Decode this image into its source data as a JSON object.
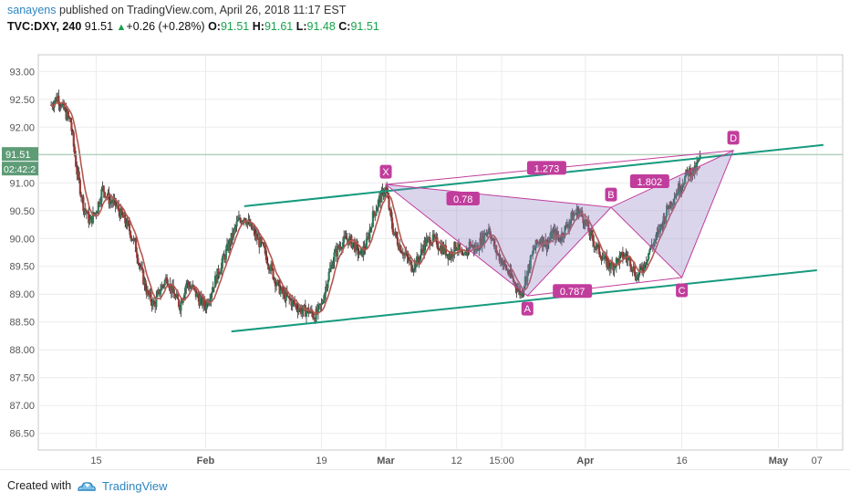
{
  "header": {
    "author": "sanayens",
    "published_text": "published on TradingView.com, April 26, 2018 11:17 EST",
    "symbol": "TVC:DXY, 240",
    "last_price": "91.51",
    "arrow": "▲",
    "change": "+0.26 (+0.28%)",
    "o_label": "O:",
    "o_value": "91.51",
    "h_label": "H:",
    "h_value": "91.61",
    "l_label": "L:",
    "l_value": "91.48",
    "c_label": "C:",
    "c_value": "91.51"
  },
  "footer": {
    "created_with": "Created with",
    "brand": "TradingView"
  },
  "colors": {
    "up_candle": "#2f7d5b",
    "down_candle": "#9b3b36",
    "moving_average": "#b5564f",
    "channel": "#159a7e",
    "pattern": "#c13d9c",
    "pattern_fill": "#8e7cc3",
    "price_label_bg": "#5e9c76",
    "tv_blue": "#2e86c1"
  },
  "chart_data": {
    "type": "candlestick",
    "instrument": "TVC:DXY",
    "timeframe": "240",
    "y_ticks": [
      "93.00",
      "92.50",
      "92.00",
      "91.50",
      "91.00",
      "90.50",
      "90.00",
      "89.50",
      "89.00",
      "88.50",
      "88.00",
      "87.50",
      "87.00",
      "86.50"
    ],
    "ylim": [
      86.2,
      93.3
    ],
    "x_ticks": [
      {
        "label": "15",
        "t": 15
      },
      {
        "label": "Feb",
        "t": 32
      },
      {
        "label": "19",
        "t": 50
      },
      {
        "label": "Mar",
        "t": 60
      },
      {
        "label": "12",
        "t": 71
      },
      {
        "label": "15:00",
        "t": 78
      },
      {
        "label": "Apr",
        "t": 91
      },
      {
        "label": "16",
        "t": 106
      },
      {
        "label": "May",
        "t": 121
      },
      {
        "label": "07",
        "t": 127
      }
    ],
    "xlim": [
      6,
      131
    ],
    "current_price_label": "91.51",
    "countdown_label": "02:42:2",
    "close_path": [
      [
        8,
        92.4
      ],
      [
        9,
        92.55
      ],
      [
        10,
        92.3
      ],
      [
        11,
        92.1
      ],
      [
        12,
        91.2
      ],
      [
        13,
        90.6
      ],
      [
        14,
        90.3
      ],
      [
        15,
        90.5
      ],
      [
        16,
        90.9
      ],
      [
        17,
        90.7
      ],
      [
        18,
        90.6
      ],
      [
        19,
        90.4
      ],
      [
        20,
        90.2
      ],
      [
        21,
        89.9
      ],
      [
        22,
        89.4
      ],
      [
        23,
        89.0
      ],
      [
        24,
        88.8
      ],
      [
        25,
        89.1
      ],
      [
        26,
        89.3
      ],
      [
        27,
        89.0
      ],
      [
        28,
        88.8
      ],
      [
        29,
        89.2
      ],
      [
        30,
        89.1
      ],
      [
        31,
        88.9
      ],
      [
        32,
        88.8
      ],
      [
        33,
        89.1
      ],
      [
        34,
        89.4
      ],
      [
        35,
        89.7
      ],
      [
        36,
        90.0
      ],
      [
        37,
        90.3
      ],
      [
        38,
        90.4
      ],
      [
        39,
        90.2
      ],
      [
        40,
        90.0
      ],
      [
        41,
        89.8
      ],
      [
        42,
        89.5
      ],
      [
        43,
        89.2
      ],
      [
        44,
        89.0
      ],
      [
        45,
        88.9
      ],
      [
        46,
        88.8
      ],
      [
        47,
        88.7
      ],
      [
        48,
        88.7
      ],
      [
        49,
        88.6
      ],
      [
        50,
        88.8
      ],
      [
        51,
        89.3
      ],
      [
        52,
        89.7
      ],
      [
        53,
        89.9
      ],
      [
        54,
        90.0
      ],
      [
        55,
        89.9
      ],
      [
        56,
        89.7
      ],
      [
        57,
        89.9
      ],
      [
        58,
        90.4
      ],
      [
        59,
        90.7
      ],
      [
        60,
        90.9
      ],
      [
        61,
        90.2
      ],
      [
        62,
        89.9
      ],
      [
        63,
        89.7
      ],
      [
        64,
        89.5
      ],
      [
        65,
        89.6
      ],
      [
        66,
        89.9
      ],
      [
        67,
        90.0
      ],
      [
        68,
        89.9
      ],
      [
        69,
        89.8
      ],
      [
        70,
        89.7
      ],
      [
        71,
        89.9
      ],
      [
        72,
        89.6
      ],
      [
        73,
        89.9
      ],
      [
        74,
        89.8
      ],
      [
        75,
        90.0
      ],
      [
        76,
        90.2
      ],
      [
        77,
        89.8
      ],
      [
        78,
        89.6
      ],
      [
        79,
        89.4
      ],
      [
        80,
        89.2
      ],
      [
        81,
        89.0
      ],
      [
        82,
        89.4
      ],
      [
        83,
        89.8
      ],
      [
        84,
        90.0
      ],
      [
        85,
        89.9
      ],
      [
        86,
        90.1
      ],
      [
        87,
        90.0
      ],
      [
        88,
        90.2
      ],
      [
        89,
        90.4
      ],
      [
        90,
        90.5
      ],
      [
        91,
        90.3
      ],
      [
        92,
        90.0
      ],
      [
        93,
        89.8
      ],
      [
        94,
        89.6
      ],
      [
        95,
        89.5
      ],
      [
        96,
        89.6
      ],
      [
        97,
        89.7
      ],
      [
        98,
        89.6
      ],
      [
        99,
        89.3
      ],
      [
        100,
        89.5
      ],
      [
        101,
        89.8
      ],
      [
        102,
        90.0
      ],
      [
        103,
        90.3
      ],
      [
        104,
        90.6
      ],
      [
        105,
        90.8
      ],
      [
        106,
        91.0
      ],
      [
        107,
        91.2
      ],
      [
        108,
        91.2
      ],
      [
        109,
        91.5
      ]
    ],
    "channel_lines": [
      {
        "name": "upper",
        "from": [
          38,
          90.58
        ],
        "to": [
          128,
          91.68
        ]
      },
      {
        "name": "lower",
        "from": [
          36,
          88.33
        ],
        "to": [
          127,
          89.43
        ]
      }
    ],
    "harmonic_pattern": {
      "points": [
        {
          "label": "X",
          "t": 60,
          "y": 90.97
        },
        {
          "label": "A",
          "t": 82,
          "y": 88.97
        },
        {
          "label": "B",
          "t": 95,
          "y": 90.56
        },
        {
          "label": "C",
          "t": 106,
          "y": 89.3
        },
        {
          "label": "D",
          "t": 114,
          "y": 91.58
        }
      ],
      "ratios": [
        {
          "label": "0.78",
          "t": 72,
          "y": 90.71
        },
        {
          "label": "0.787",
          "t": 89,
          "y": 89.05
        },
        {
          "label": "1.802",
          "t": 101,
          "y": 91.02
        },
        {
          "label": "1.273",
          "t": 85,
          "y": 91.26
        }
      ]
    }
  }
}
